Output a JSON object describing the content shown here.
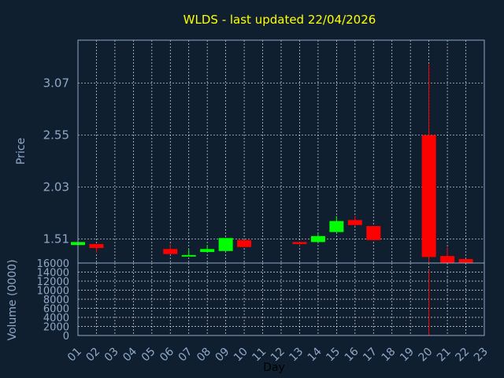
{
  "chart_data": {
    "type": "candlestick",
    "title": "WLDS - last updated 22/04/2026",
    "ylabel": "Price",
    "xlabel": "Day",
    "volume_label": "Volume (0000)",
    "ylim": [
      1.27,
      3.5
    ],
    "price_ticks": [
      "3.07",
      "2.55",
      "2.03",
      "1.51"
    ],
    "volume_ylim": [
      0,
      16000
    ],
    "volume_ticks": [
      "16000",
      "14000",
      "12000",
      "10000",
      "8000",
      "6000",
      "4000",
      "2000",
      "0"
    ],
    "x_ticks": [
      "01",
      "02",
      "03",
      "04",
      "05",
      "06",
      "07",
      "08",
      "09",
      "10",
      "11",
      "12",
      "13",
      "14",
      "15",
      "16",
      "17",
      "18",
      "19",
      "20",
      "21",
      "22",
      "23"
    ],
    "up_color": "#00ff00",
    "down_color": "#ff0000",
    "candles": [
      {
        "day": 1,
        "open": 1.45,
        "close": 1.48,
        "high": 1.48,
        "low": 1.45
      },
      {
        "day": 2,
        "open": 1.46,
        "close": 1.42,
        "high": 1.46,
        "low": 1.37
      },
      {
        "day": 6,
        "open": 1.41,
        "close": 1.36,
        "high": 1.46,
        "low": 1.36
      },
      {
        "day": 7,
        "open": 1.34,
        "close": 1.35,
        "high": 1.41,
        "low": 1.34
      },
      {
        "day": 8,
        "open": 1.38,
        "close": 1.41,
        "high": 1.45,
        "low": 1.38
      },
      {
        "day": 9,
        "open": 1.39,
        "close": 1.52,
        "high": 1.52,
        "low": 1.39
      },
      {
        "day": 10,
        "open": 1.5,
        "close": 1.43,
        "high": 1.5,
        "low": 1.43
      },
      {
        "day": 13,
        "open": 1.48,
        "close": 1.46,
        "high": 1.48,
        "low": 1.44
      },
      {
        "day": 14,
        "open": 1.48,
        "close": 1.54,
        "high": 1.56,
        "low": 1.48
      },
      {
        "day": 15,
        "open": 1.58,
        "close": 1.69,
        "high": 1.74,
        "low": 1.58
      },
      {
        "day": 16,
        "open": 1.7,
        "close": 1.65,
        "high": 1.74,
        "low": 1.64
      },
      {
        "day": 17,
        "open": 1.64,
        "close": 1.5,
        "high": 1.64,
        "low": 1.5
      },
      {
        "day": 20,
        "open": 2.55,
        "close": 1.33,
        "high": 3.26,
        "low": 1.26
      },
      {
        "day": 21,
        "open": 1.34,
        "close": 1.27,
        "high": 1.43,
        "low": 1.27
      },
      {
        "day": 22,
        "open": 1.31,
        "close": 1.27,
        "high": 1.31,
        "low": 1.27
      }
    ],
    "volume": [
      {
        "day": 20,
        "value": 14500
      }
    ]
  }
}
